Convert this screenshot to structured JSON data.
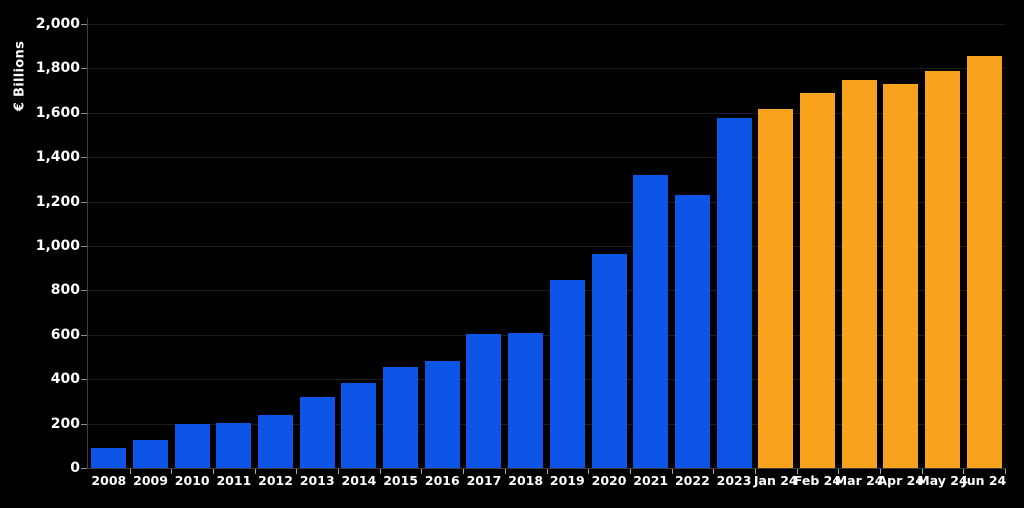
{
  "page": {
    "background": "#000000"
  },
  "chart_data": {
    "type": "bar",
    "title": "",
    "xlabel": "",
    "ylabel": "€ Billions",
    "ylim": [
      0,
      2000
    ],
    "ytick_step": 200,
    "ytick_labels": [
      "0",
      "200",
      "400",
      "600",
      "800",
      "1,000",
      "1,200",
      "1,400",
      "1,600",
      "1,800",
      "2,000"
    ],
    "grid": "horizontal",
    "legend_position": "none",
    "categories": [
      "2008",
      "2009",
      "2010",
      "2011",
      "2012",
      "2013",
      "2014",
      "2015",
      "2016",
      "2017",
      "2018",
      "2019",
      "2020",
      "2021",
      "2022",
      "2023",
      "Jan 24",
      "Feb 24",
      "Mar 24",
      "Apr 24",
      "May 24",
      "Jun 24"
    ],
    "values": [
      88,
      126,
      200,
      202,
      238,
      322,
      385,
      455,
      480,
      605,
      608,
      845,
      965,
      1320,
      1232,
      1575,
      1617,
      1690,
      1747,
      1730,
      1788,
      1858
    ],
    "segments": [
      {
        "name": "annual-2008-2023",
        "color": "#0D55E6",
        "from": 0,
        "to": 15
      },
      {
        "name": "monthly-2024",
        "color": "#F9A21D",
        "from": 16,
        "to": 21
      }
    ],
    "colors": {
      "background": "#000000",
      "text": "#ffffff",
      "gridline": "#1d1d1d",
      "axis": "#3d3d3d",
      "tick": "#a8a8a8"
    }
  }
}
